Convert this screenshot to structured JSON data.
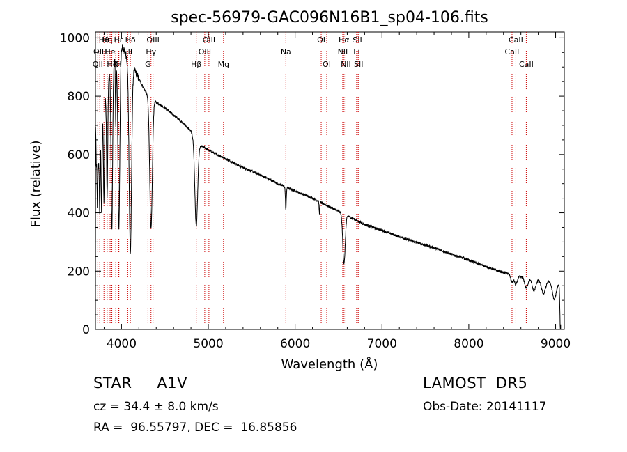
{
  "chart_data": {
    "type": "line",
    "title": "spec-56979-GAC096N16B1_sp04-106.fits",
    "xlabel": "Wavelength (Å)",
    "ylabel": "Flux (relative)",
    "xlim": [
      3700,
      9100
    ],
    "ylim": [
      0,
      1020
    ],
    "xticks": [
      4000,
      5000,
      6000,
      7000,
      8000,
      9000
    ],
    "yticks": [
      0,
      200,
      400,
      600,
      800,
      1000
    ],
    "grid": false,
    "line_color": "#000000",
    "line_marker_color": "#cc0000",
    "spectral_lines": [
      {
        "label": "OII",
        "x": 3727,
        "row": 3
      },
      {
        "label": "Hθ",
        "x": 3798,
        "row": 1
      },
      {
        "label": "OIII",
        "x": 3750,
        "row": 2
      },
      {
        "label": "Hη",
        "x": 3835,
        "row": 1
      },
      {
        "label": "He",
        "x": 3869,
        "row": 2
      },
      {
        "label": "K",
        "x": 3934,
        "row": 3
      },
      {
        "label": "Hζ",
        "x": 3889,
        "row": 3
      },
      {
        "label": "H",
        "x": 3969,
        "row": 3
      },
      {
        "label": "SII",
        "x": 4072,
        "row": 2
      },
      {
        "label": "Hε",
        "x": 3970,
        "row": 1
      },
      {
        "label": "Hδ",
        "x": 4102,
        "row": 1
      },
      {
        "label": "OIII",
        "x": 4363,
        "row": 1
      },
      {
        "label": "Hγ",
        "x": 4340,
        "row": 2
      },
      {
        "label": "G",
        "x": 4305,
        "row": 3
      },
      {
        "label": "OIII",
        "x": 5007,
        "row": 1
      },
      {
        "label": "OIII",
        "x": 4959,
        "row": 2
      },
      {
        "label": "Hβ",
        "x": 4861,
        "row": 3
      },
      {
        "label": "Mg",
        "x": 5175,
        "row": 3
      },
      {
        "label": "Na",
        "x": 5893,
        "row": 2
      },
      {
        "label": "OI",
        "x": 6300,
        "row": 1
      },
      {
        "label": "OI",
        "x": 6364,
        "row": 3
      },
      {
        "label": "Hα",
        "x": 6563,
        "row": 1
      },
      {
        "label": "NII",
        "x": 6548,
        "row": 2
      },
      {
        "label": "NII",
        "x": 6584,
        "row": 3
      },
      {
        "label": "SII",
        "x": 6717,
        "row": 1
      },
      {
        "label": "Li",
        "x": 6708,
        "row": 2
      },
      {
        "label": "SII",
        "x": 6731,
        "row": 3
      },
      {
        "label": "CaII",
        "x": 8542,
        "row": 1
      },
      {
        "label": "CaII",
        "x": 8498,
        "row": 2
      },
      {
        "label": "CaII",
        "x": 8662,
        "row": 3
      }
    ],
    "continuum": [
      [
        3700,
        0
      ],
      [
        3702,
        700
      ],
      [
        3710,
        560
      ],
      [
        3720,
        620
      ],
      [
        3735,
        560
      ],
      [
        3750,
        640
      ],
      [
        3780,
        720
      ],
      [
        3810,
        790
      ],
      [
        3850,
        860
      ],
      [
        3900,
        910
      ],
      [
        3950,
        940
      ],
      [
        3990,
        960
      ],
      [
        4010,
        970
      ],
      [
        4030,
        960
      ],
      [
        4060,
        930
      ],
      [
        4100,
        905
      ],
      [
        4150,
        890
      ],
      [
        4200,
        860
      ],
      [
        4250,
        830
      ],
      [
        4300,
        805
      ],
      [
        4400,
        780
      ],
      [
        4500,
        760
      ],
      [
        4600,
        735
      ],
      [
        4700,
        710
      ],
      [
        4800,
        680
      ],
      [
        4850,
        650
      ],
      [
        4900,
        630
      ],
      [
        4950,
        625
      ],
      [
        5000,
        615
      ],
      [
        5200,
        585
      ],
      [
        5400,
        555
      ],
      [
        5600,
        530
      ],
      [
        5800,
        500
      ],
      [
        6000,
        475
      ],
      [
        6200,
        450
      ],
      [
        6400,
        420
      ],
      [
        6600,
        390
      ],
      [
        6800,
        360
      ],
      [
        7000,
        340
      ],
      [
        7200,
        318
      ],
      [
        7400,
        298
      ],
      [
        7600,
        280
      ],
      [
        7800,
        258
      ],
      [
        8000,
        238
      ],
      [
        8200,
        215
      ],
      [
        8400,
        195
      ],
      [
        8600,
        180
      ],
      [
        8800,
        170
      ],
      [
        9000,
        162
      ],
      [
        9050,
        158
      ]
    ],
    "absorption": [
      {
        "x": 3722,
        "depth": 190,
        "width": 4
      },
      {
        "x": 3750,
        "depth": 240,
        "width": 5
      },
      {
        "x": 3771,
        "depth": 300,
        "width": 5
      },
      {
        "x": 3798,
        "depth": 320,
        "width": 6
      },
      {
        "x": 3835,
        "depth": 380,
        "width": 7
      },
      {
        "x": 3889,
        "depth": 560,
        "width": 9
      },
      {
        "x": 3934,
        "depth": 240,
        "width": 4
      },
      {
        "x": 3970,
        "depth": 600,
        "width": 11
      },
      {
        "x": 4102,
        "depth": 640,
        "width": 14
      },
      {
        "x": 4340,
        "depth": 450,
        "width": 15
      },
      {
        "x": 4861,
        "depth": 290,
        "width": 16
      },
      {
        "x": 5893,
        "depth": 80,
        "width": 5
      },
      {
        "x": 6280,
        "depth": 40,
        "width": 4
      },
      {
        "x": 6563,
        "depth": 170,
        "width": 14
      },
      {
        "x": 8498,
        "depth": 25,
        "width": 14
      },
      {
        "x": 8542,
        "depth": 30,
        "width": 16
      },
      {
        "x": 8662,
        "depth": 35,
        "width": 18
      },
      {
        "x": 8750,
        "depth": 40,
        "width": 20
      },
      {
        "x": 8860,
        "depth": 45,
        "width": 22
      },
      {
        "x": 8985,
        "depth": 60,
        "width": 22
      },
      {
        "x": 9055,
        "depth": 160,
        "width": 6
      }
    ],
    "noise_amplitude": 4
  },
  "info": {
    "class": "STAR     A1V",
    "survey": "LAMOST  DR5",
    "cz": "cz = 34.4 ± 8.0 km/s",
    "obs_date": "Obs-Date: 20141117",
    "radec": "RA =  96.55797, DEC =  16.85856"
  }
}
